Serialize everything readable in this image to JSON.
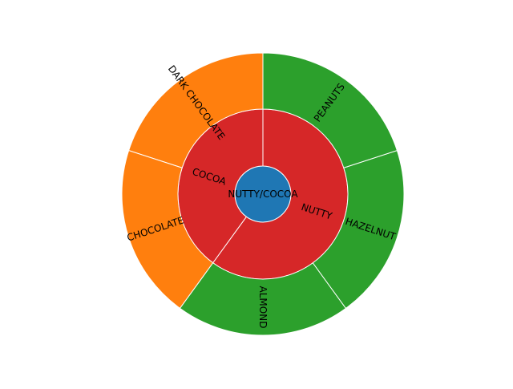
{
  "chart_data": {
    "type": "sunburst",
    "root": {
      "label": "NUTTY/COCOA",
      "color": "#1f77b4"
    },
    "groups": [
      {
        "label": "COCOA",
        "color": "#d62728",
        "value": 2,
        "children": [
          {
            "label": "DARK CHOCOLATE",
            "value": 1,
            "color": "#ff7f0e"
          },
          {
            "label": "CHOCOLATE",
            "value": 1,
            "color": "#ff7f0e"
          }
        ]
      },
      {
        "label": "NUTTY",
        "color": "#d62728",
        "value": 3,
        "children": [
          {
            "label": "ALMOND",
            "value": 1,
            "color": "#2ca02c"
          },
          {
            "label": "HAZELNUT",
            "value": 1,
            "color": "#2ca02c"
          },
          {
            "label": "PEANUTS",
            "value": 1,
            "color": "#2ca02c"
          }
        ]
      }
    ],
    "colors": {
      "center": "#1f77b4",
      "middle_ring": "#d62728",
      "cocoa_outer": "#ff7f0e",
      "nutty_outer": "#2ca02c",
      "edge": "#ffffff"
    }
  }
}
